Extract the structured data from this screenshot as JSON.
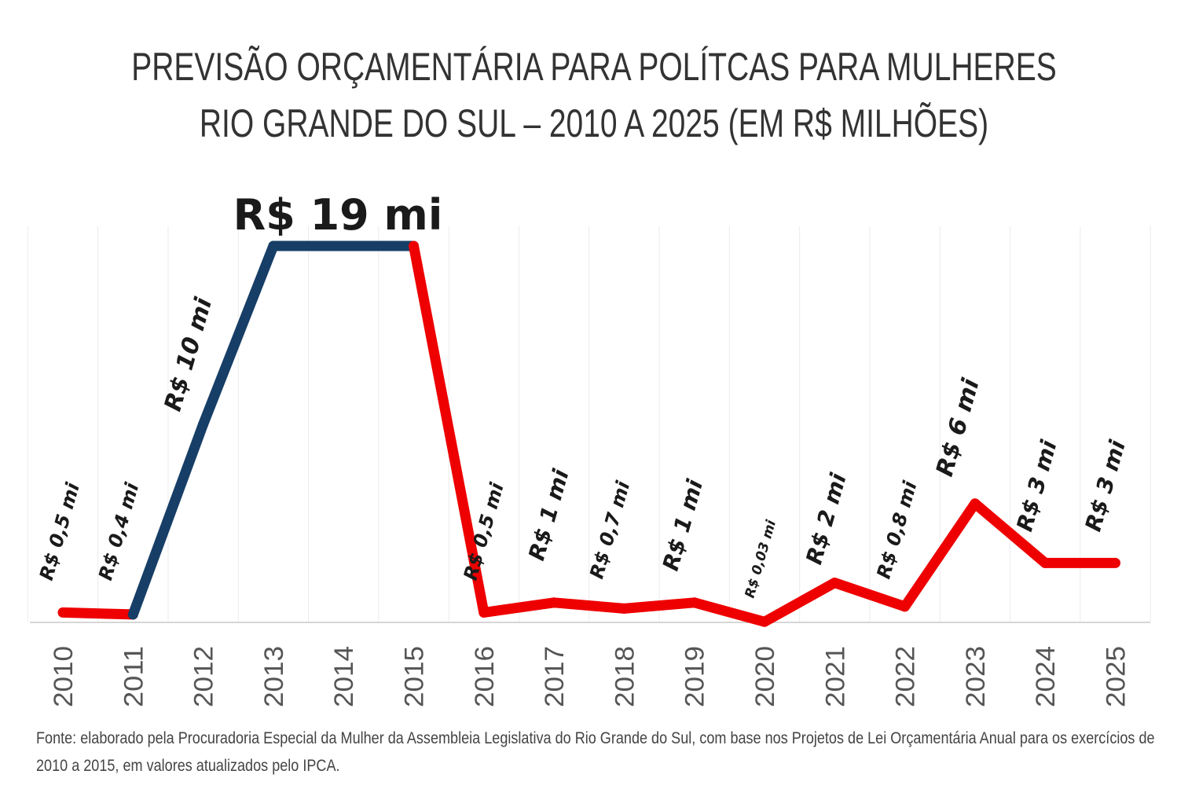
{
  "chart_data": {
    "type": "line",
    "title_line1": "PREVISÃO ORÇAMENTÁRIA PARA POLÍTCAS PARA MULHERES",
    "title_line2": "RIO GRANDE DO SUL – 2010 A 2025 (EM R$ MILHÕES)",
    "xlabel": "",
    "ylabel": "",
    "categories": [
      "2010",
      "2011",
      "2012",
      "2013",
      "2014",
      "2015",
      "2016",
      "2017",
      "2018",
      "2019",
      "2020",
      "2021",
      "2022",
      "2023",
      "2024",
      "2025"
    ],
    "series": [
      {
        "name": "Previsão orçamentária (R$ milhões)",
        "values": [
          0.5,
          0.4,
          10,
          19,
          19,
          19,
          0.5,
          1,
          0.7,
          1,
          0.03,
          2,
          0.8,
          6,
          3,
          3
        ]
      }
    ],
    "data_labels": [
      "R$ 0,5 mi",
      "R$ 0,4 mi",
      "R$ 10 mi",
      null,
      null,
      null,
      "R$ 0,5 mi",
      "R$ 1 mi",
      "R$ 0,7 mi",
      "R$ 1 mi",
      "R$ 0,03 mi",
      "R$ 2 mi",
      "R$ 0,8 mi",
      "R$ 6 mi",
      "R$ 3 mi",
      "R$ 3 mi"
    ],
    "peak_label": "R$ 19 mi",
    "segment_colors": [
      "#ee0000",
      "#173e66",
      "#173e66",
      "#173e66",
      "#173e66",
      "#ee0000",
      "#ee0000",
      "#ee0000",
      "#ee0000",
      "#ee0000",
      "#ee0000",
      "#ee0000",
      "#ee0000",
      "#ee0000",
      "#ee0000"
    ],
    "ylim": [
      0,
      19
    ],
    "grid": "vertical",
    "legend": "none"
  },
  "source": "Fonte: elaborado pela Procuradoria Especial da Mulher da Assembleia Legislativa do Rio Grande do Sul, com base nos Projetos de Lei Orçamentária Anual para os exercícios de 2010 a 2015, em valores atualizados pelo IPCA."
}
